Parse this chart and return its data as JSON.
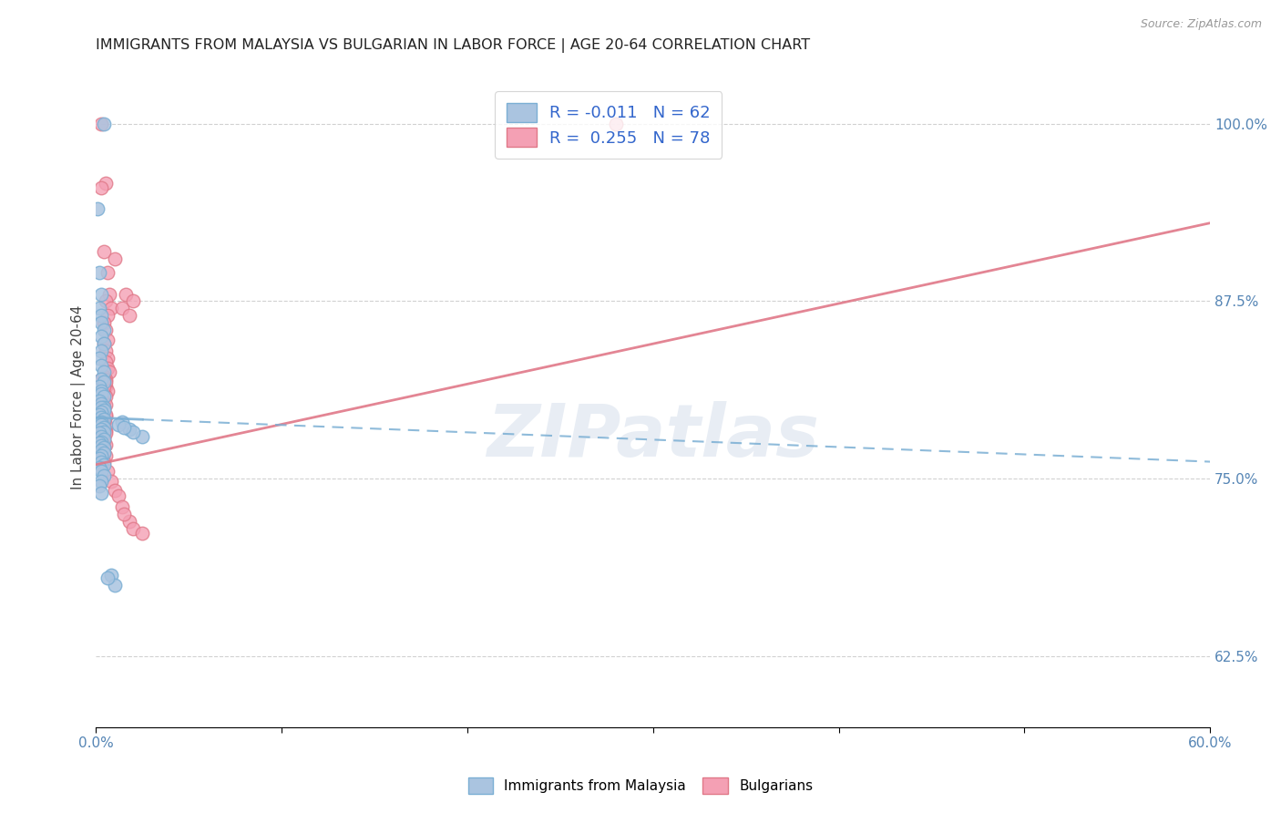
{
  "title": "IMMIGRANTS FROM MALAYSIA VS BULGARIAN IN LABOR FORCE | AGE 20-64 CORRELATION CHART",
  "source": "Source: ZipAtlas.com",
  "ylabel": "In Labor Force | Age 20-64",
  "xlim": [
    0.0,
    0.6
  ],
  "ylim": [
    0.575,
    1.04
  ],
  "xticks": [
    0.0,
    0.1,
    0.2,
    0.3,
    0.4,
    0.5,
    0.6
  ],
  "xticklabels": [
    "0.0%",
    "",
    "",
    "",
    "",
    "",
    "60.0%"
  ],
  "yticks": [
    0.625,
    0.75,
    0.875,
    1.0
  ],
  "yticklabels": [
    "62.5%",
    "75.0%",
    "87.5%",
    "100.0%"
  ],
  "color_blue": "#aac4e0",
  "color_pink": "#f4a0b4",
  "color_blue_edge": "#7bafd4",
  "color_pink_edge": "#e07888",
  "color_blue_line": "#7bafd4",
  "color_pink_line": "#e07888",
  "watermark_text": "ZIPatlas",
  "blue_scatter_x": [
    0.004,
    0.001,
    0.002,
    0.003,
    0.002,
    0.003,
    0.003,
    0.004,
    0.003,
    0.004,
    0.003,
    0.002,
    0.003,
    0.004,
    0.003,
    0.004,
    0.002,
    0.003,
    0.003,
    0.004,
    0.002,
    0.003,
    0.004,
    0.003,
    0.004,
    0.003,
    0.002,
    0.003,
    0.004,
    0.003,
    0.003,
    0.004,
    0.003,
    0.004,
    0.002,
    0.003,
    0.004,
    0.003,
    0.002,
    0.003,
    0.004,
    0.003,
    0.004,
    0.003,
    0.002,
    0.003,
    0.004,
    0.002,
    0.003,
    0.004,
    0.003,
    0.002,
    0.003,
    0.014,
    0.018,
    0.025,
    0.02,
    0.012,
    0.015,
    0.008,
    0.01,
    0.006
  ],
  "blue_scatter_y": [
    1.0,
    0.94,
    0.895,
    0.88,
    0.87,
    0.865,
    0.86,
    0.855,
    0.85,
    0.845,
    0.84,
    0.835,
    0.83,
    0.825,
    0.82,
    0.818,
    0.815,
    0.812,
    0.81,
    0.808,
    0.805,
    0.803,
    0.8,
    0.8,
    0.798,
    0.797,
    0.795,
    0.793,
    0.792,
    0.79,
    0.788,
    0.786,
    0.785,
    0.783,
    0.782,
    0.78,
    0.778,
    0.776,
    0.775,
    0.773,
    0.772,
    0.77,
    0.768,
    0.766,
    0.764,
    0.762,
    0.76,
    0.758,
    0.755,
    0.752,
    0.748,
    0.745,
    0.74,
    0.79,
    0.785,
    0.78,
    0.783,
    0.788,
    0.786,
    0.682,
    0.675,
    0.68
  ],
  "pink_scatter_x": [
    0.003,
    0.005,
    0.003,
    0.004,
    0.01,
    0.006,
    0.007,
    0.005,
    0.008,
    0.006,
    0.004,
    0.005,
    0.006,
    0.004,
    0.005,
    0.006,
    0.005,
    0.006,
    0.007,
    0.004,
    0.005,
    0.004,
    0.005,
    0.006,
    0.004,
    0.005,
    0.003,
    0.004,
    0.005,
    0.004,
    0.003,
    0.004,
    0.005,
    0.003,
    0.004,
    0.003,
    0.004,
    0.005,
    0.003,
    0.004,
    0.003,
    0.004,
    0.005,
    0.004,
    0.003,
    0.004,
    0.005,
    0.003,
    0.004,
    0.003,
    0.006,
    0.008,
    0.01,
    0.012,
    0.014,
    0.018,
    0.02,
    0.025,
    0.015,
    0.003,
    0.005,
    0.004,
    0.003,
    0.005,
    0.004,
    0.003,
    0.004,
    0.003,
    0.005,
    0.004,
    0.28,
    0.003,
    0.005,
    0.004,
    0.014,
    0.016,
    0.02,
    0.018
  ],
  "pink_scatter_y": [
    1.0,
    0.958,
    0.955,
    0.91,
    0.905,
    0.895,
    0.88,
    0.875,
    0.87,
    0.865,
    0.86,
    0.855,
    0.848,
    0.845,
    0.84,
    0.835,
    0.832,
    0.828,
    0.825,
    0.822,
    0.82,
    0.818,
    0.815,
    0.812,
    0.81,
    0.808,
    0.806,
    0.804,
    0.802,
    0.8,
    0.798,
    0.796,
    0.794,
    0.792,
    0.79,
    0.788,
    0.786,
    0.784,
    0.782,
    0.78,
    0.778,
    0.776,
    0.774,
    0.772,
    0.77,
    0.768,
    0.766,
    0.764,
    0.762,
    0.76,
    0.755,
    0.748,
    0.742,
    0.738,
    0.73,
    0.72,
    0.715,
    0.712,
    0.725,
    0.82,
    0.818,
    0.815,
    0.79,
    0.788,
    0.782,
    0.78,
    0.778,
    0.78,
    0.782,
    0.79,
    1.0,
    0.8,
    0.795,
    0.82,
    0.87,
    0.88,
    0.875,
    0.865
  ],
  "trend_blue_x0": 0.0,
  "trend_blue_y0": 0.793,
  "trend_blue_x1": 0.6,
  "trend_blue_y1": 0.762,
  "trend_blue_solid_x1": 0.025,
  "trend_pink_x0": 0.0,
  "trend_pink_y0": 0.76,
  "trend_pink_x1": 0.6,
  "trend_pink_y1": 0.93
}
